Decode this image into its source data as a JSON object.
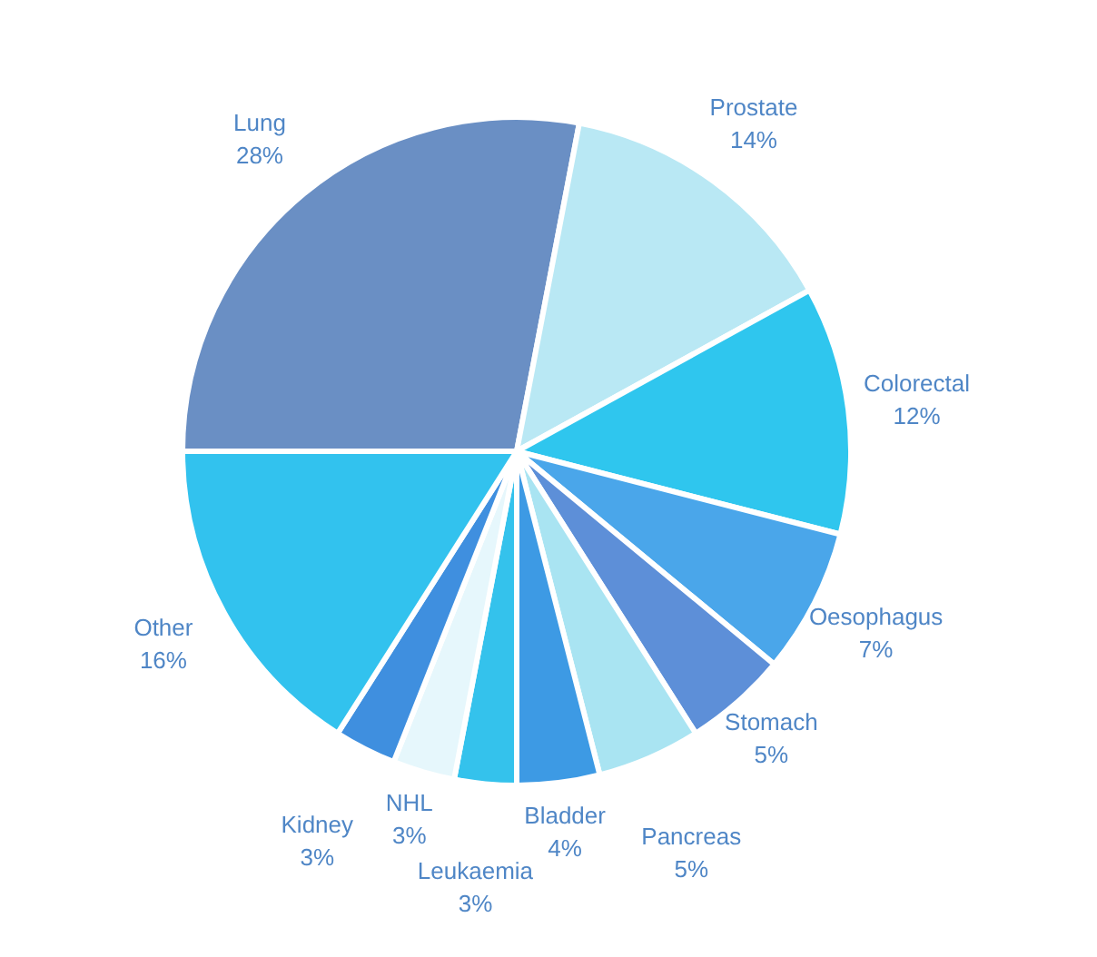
{
  "chart_data": {
    "type": "pie",
    "categories": [
      "Lung",
      "Prostate",
      "Colorectal",
      "Oesophagus",
      "Stomach",
      "Pancreas",
      "Bladder",
      "Leukaemia",
      "NHL",
      "Kidney",
      "Other"
    ],
    "values": [
      28,
      14,
      12,
      7,
      5,
      5,
      4,
      3,
      3,
      3,
      16
    ],
    "value_labels": [
      "28%",
      "14%",
      "12%",
      "7%",
      "5%",
      "5%",
      "4%",
      "3%",
      "3%",
      "3%",
      "16%"
    ],
    "colors": [
      "#6a8fc4",
      "#b9e8f4",
      "#2fc6ee",
      "#4aa6ea",
      "#5d8fd8",
      "#a9e4f2",
      "#3d9ae4",
      "#34c2ec",
      "#e6f7fc",
      "#3f8fdf",
      "#32c2ee"
    ],
    "legend": false
  }
}
